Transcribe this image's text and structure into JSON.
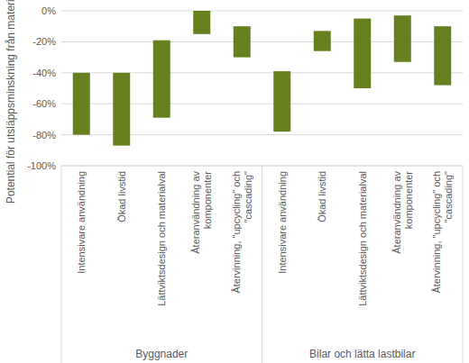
{
  "chart_data": {
    "type": "bar",
    "y_label": "Potential för utsläppsminskning från material",
    "groups": [
      {
        "label": "Byggnader",
        "categories": [
          "Intensivare användning",
          "Ökad livstid",
          "Lättviktsdesign och materialval",
          "Återanvändning av\nkomponenter",
          "Återvinning, \"upcycling\" och\n\"cascading\""
        ],
        "values": [
          [
            -80,
            -40
          ],
          [
            -87,
            -40
          ],
          [
            -69,
            -19
          ],
          [
            -15,
            0
          ],
          [
            -30,
            -10
          ]
        ]
      },
      {
        "label": "Bilar och lätta lastbilar",
        "categories": [
          "Intensivare användning",
          "Ökad livstid",
          "Lättviktsdesign och materialval",
          "Återanvändning av\nkomponenter",
          "Återvinning, \"upcycling\" och\n\"cascading\""
        ],
        "values": [
          [
            -78,
            -39
          ],
          [
            -26,
            -13
          ],
          [
            -50,
            -5
          ],
          [
            -33,
            -3
          ],
          [
            -48,
            -10
          ]
        ]
      }
    ],
    "color": "#66801f",
    "ylim": [
      -100,
      0
    ],
    "yticks": [
      {
        "value": -100,
        "label": "-100%"
      },
      {
        "value": -80,
        "label": "-80%"
      },
      {
        "value": -60,
        "label": "-60%"
      },
      {
        "value": -40,
        "label": "-40%"
      },
      {
        "value": -20,
        "label": "-20%"
      },
      {
        "value": 0,
        "label": "0%"
      }
    ],
    "grid": true
  }
}
